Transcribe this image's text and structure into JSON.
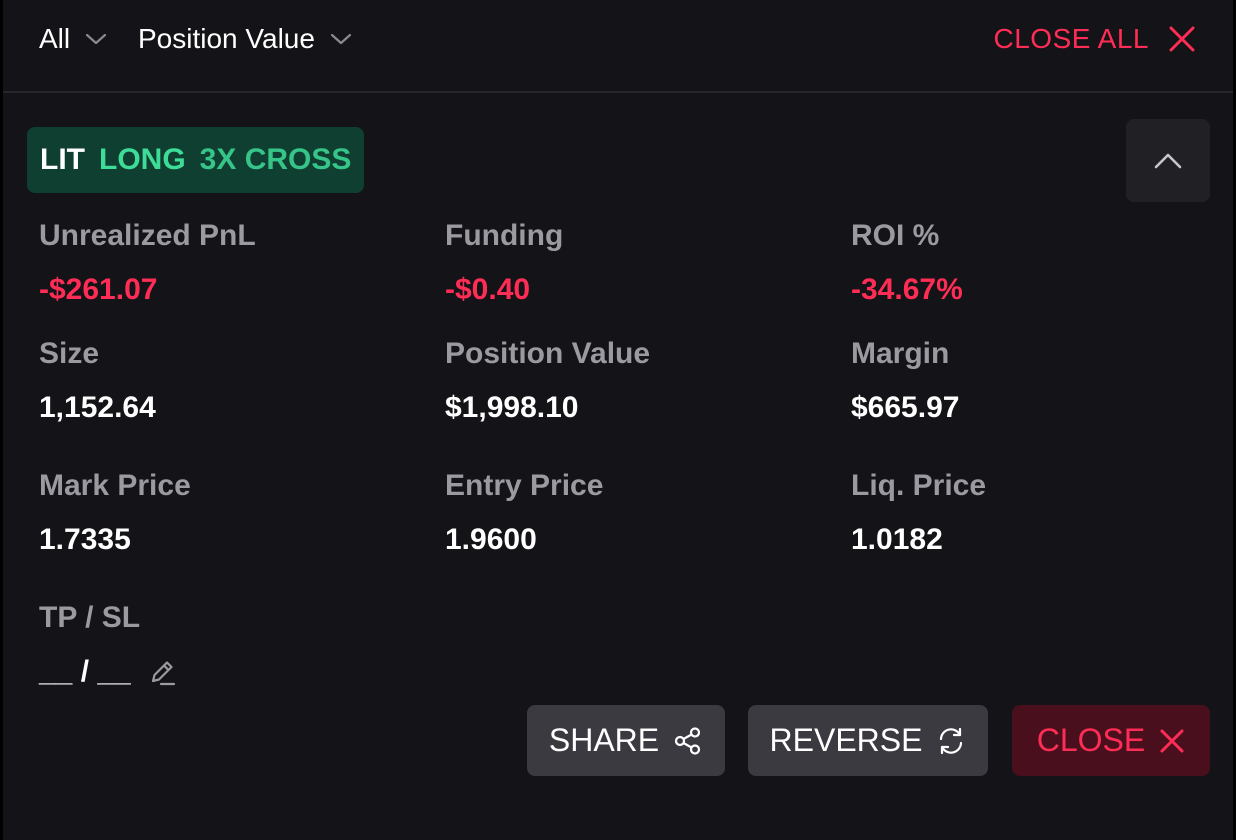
{
  "filters": {
    "type_label": "All",
    "sort_label": "Position Value"
  },
  "toolbar": {
    "close_all_label": "CLOSE ALL"
  },
  "position": {
    "symbol": "LIT",
    "side": "LONG",
    "leverage": "3X CROSS",
    "stats": {
      "unrealized_pnl": {
        "label": "Unrealized PnL",
        "value": "-$261.07"
      },
      "funding": {
        "label": "Funding",
        "value": "-$0.40"
      },
      "roi": {
        "label": "ROI %",
        "value": "-34.67%"
      },
      "size": {
        "label": "Size",
        "value": "1,152.64"
      },
      "position_value": {
        "label": "Position Value",
        "value": "$1,998.10"
      },
      "margin": {
        "label": "Margin",
        "value": "$665.97"
      },
      "mark_price": {
        "label": "Mark Price",
        "value": "1.7335"
      },
      "entry_price": {
        "label": "Entry Price",
        "value": "1.9600"
      },
      "liq_price": {
        "label": "Liq. Price",
        "value": "1.0182"
      },
      "tp_sl": {
        "label": "TP / SL",
        "value": "__ / __"
      }
    }
  },
  "actions": {
    "share_label": "SHARE",
    "reverse_label": "REVERSE",
    "close_label": "CLOSE"
  },
  "icons": {
    "filter_chevron": "chevron-down-icon",
    "close_all": "close-icon",
    "collapse": "chevron-up-icon",
    "edit": "pencil-icon",
    "share": "share-icon",
    "reverse": "refresh-icon",
    "close": "close-icon"
  },
  "colors": {
    "background": "#131318",
    "negative": "#ff2d55",
    "long": "#3ddc97",
    "badge_bg": "#0f3f30",
    "button_bg": "#3a3a40",
    "close_button_bg": "#4a0f1c"
  }
}
